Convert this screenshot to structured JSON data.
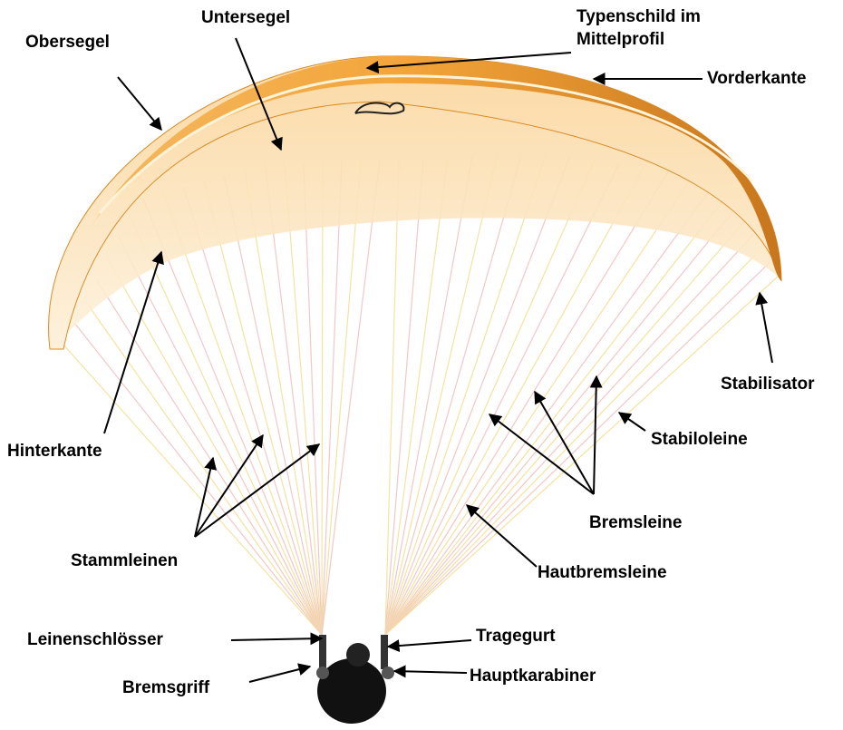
{
  "labels": [
    {
      "text": "Obersegel"
    },
    {
      "text": "Untersegel"
    },
    {
      "lines": [
        "Typenschild im",
        "Mittelprofil"
      ]
    },
    {
      "text": "Vorderkante"
    },
    {
      "text": "Hinterkante"
    },
    {
      "text": "Stabilisator"
    },
    {
      "text": "Stabiloleine"
    },
    {
      "text": "Bremsleine"
    },
    {
      "text": "Stammleinen"
    },
    {
      "text": "Hautbremsleine"
    },
    {
      "text": "Leinenschlösser"
    },
    {
      "text": "Tragegurt"
    },
    {
      "text": "Bremsgriff"
    },
    {
      "text": "Hauptkarabiner"
    }
  ]
}
